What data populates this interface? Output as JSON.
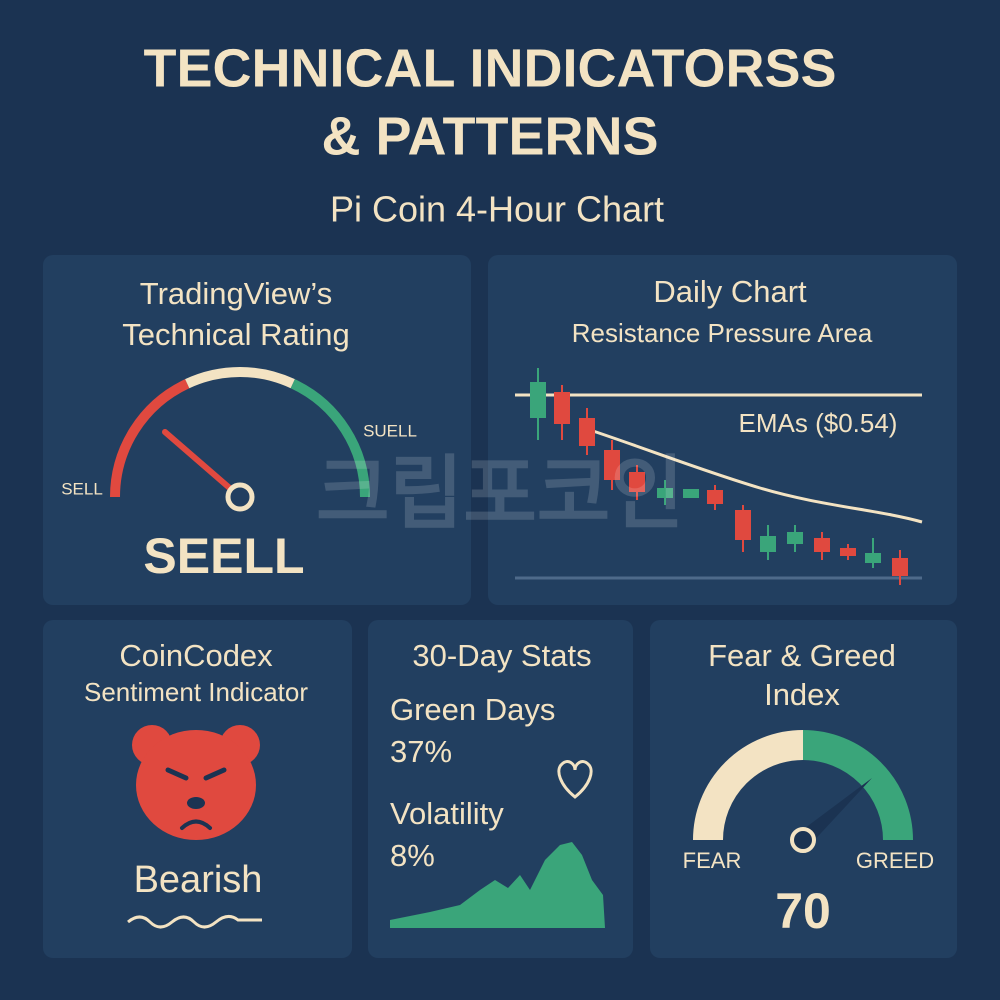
{
  "header": {
    "title_line1": "TECHNICAL INDICATORSS",
    "title_line2": "& PATTERNS",
    "subtitle": "Pi Coin 4-Hour Chart"
  },
  "watermark": "크립포코인",
  "rating_panel": {
    "title_line1": "TradingView’s",
    "title_line2": "Technical Rating",
    "left_label": "SELL",
    "right_label": "SUELL",
    "rating": "SEELL"
  },
  "daily_panel": {
    "title": "Daily Chart",
    "subtitle": "Resistance Pressure Area",
    "ema_label": "EMAs ($0.54)"
  },
  "sentiment_panel": {
    "title": "CoinCodex",
    "subtitle": "Sentiment Indicator",
    "sentiment": "Bearish"
  },
  "stats_panel": {
    "title": "30-Day Stats",
    "green_days_label": "Green Days",
    "green_days_value": "37%",
    "volatility_label": "Volatility",
    "volatility_value": "8%"
  },
  "fear_greed_panel": {
    "title_line1": "Fear & Greed",
    "title_line2": "Index",
    "left_label": "FEAR",
    "right_label": "GREED",
    "value": 70
  }
}
